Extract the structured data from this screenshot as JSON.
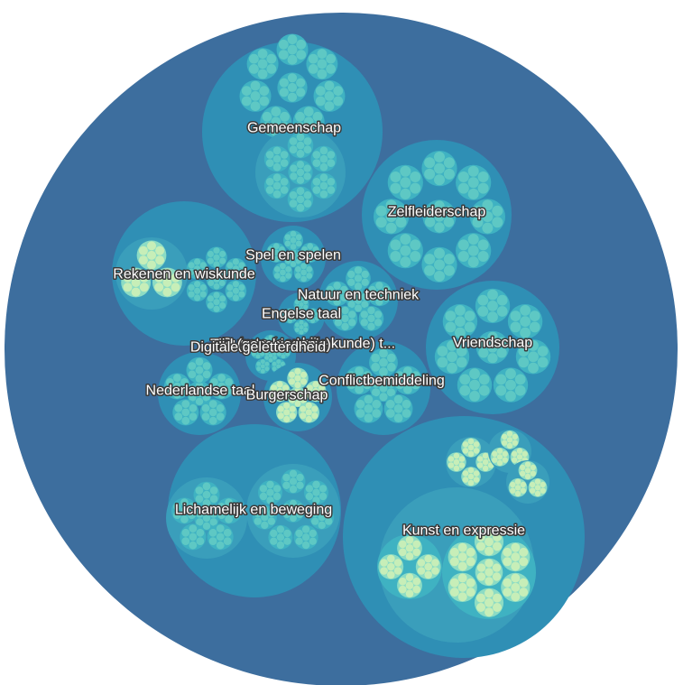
{
  "colors": {
    "root": "#3d6e9e",
    "depth1": "#2f8fb5",
    "depth2": "#3a9ebb",
    "depth3": "#3fb2c2",
    "depth4": "#5ec8c4",
    "depth5": "#8cdcc4",
    "highlight": "#c7eeb8",
    "label_fill": "#ffffff",
    "label_stroke": "#3a3a3a"
  },
  "domains": [
    {
      "id": "gemeenschap",
      "label": "Gemeenschap"
    },
    {
      "id": "zelfleiderschap",
      "label": "Zelfleiderschap"
    },
    {
      "id": "rekenen",
      "label": "Rekenen en wiskunde"
    },
    {
      "id": "spel",
      "label": "Spel en spelen"
    },
    {
      "id": "natuur",
      "label": "Natuur en techniek"
    },
    {
      "id": "engels",
      "label": "Engelse taal"
    },
    {
      "id": "tijd",
      "label": "Ruimte (aardrijkskunde) t..."
    },
    {
      "id": "tijd2",
      "label": "Tijd (geschiedenis)"
    },
    {
      "id": "digitaal",
      "label": "Digitale geletterdheid"
    },
    {
      "id": "vriendschap",
      "label": "Vriendschap"
    },
    {
      "id": "nederlands",
      "label": "Nederlandse taal"
    },
    {
      "id": "conflict",
      "label": "Conflictbemiddeling"
    },
    {
      "id": "burgerschap",
      "label": "Burgerschap"
    },
    {
      "id": "lichamelijk",
      "label": "Lichamelijk en beweging"
    },
    {
      "id": "kunst",
      "label": "Kunst en expressie"
    }
  ]
}
